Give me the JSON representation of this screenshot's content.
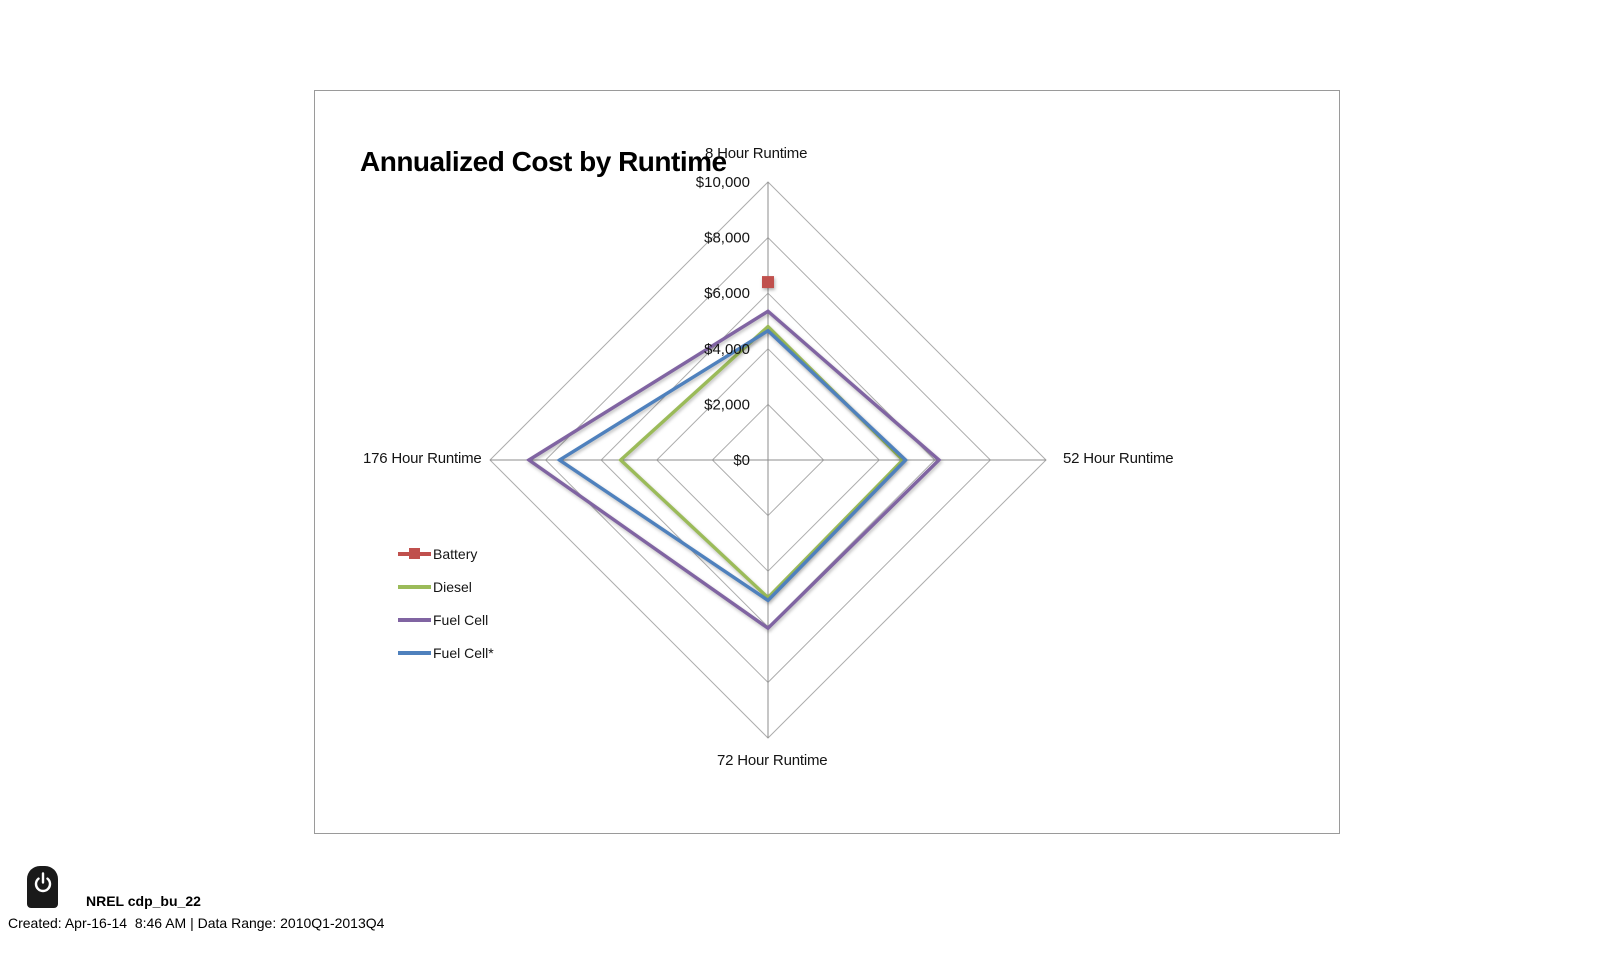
{
  "chart_data": {
    "type": "radar",
    "title": "Annualized Cost by Runtime",
    "axes": [
      "8 Hour Runtime",
      "52 Hour Runtime",
      "72 Hour Runtime",
      "176 Hour Runtime"
    ],
    "r_axis": {
      "min": 0,
      "max": 10000,
      "step": 2000,
      "tick_labels": [
        "$0",
        "$2,000",
        "$4,000",
        "$6,000",
        "$8,000",
        "$10,000"
      ]
    },
    "grid": true,
    "legend_position": "middle-left",
    "series": [
      {
        "name": "Battery",
        "color": "#C0504D",
        "style": "marker-only",
        "marker": "square",
        "values": [
          6400,
          null,
          null,
          null
        ]
      },
      {
        "name": "Diesel",
        "color": "#9BBB59",
        "style": "line",
        "marker": "none",
        "values": [
          4800,
          4850,
          4950,
          5300
        ]
      },
      {
        "name": "Fuel Cell",
        "color": "#8064A2",
        "style": "line",
        "marker": "none",
        "values": [
          5350,
          6150,
          6050,
          8600
        ]
      },
      {
        "name": "Fuel Cell*",
        "color": "#4F81BD",
        "style": "line",
        "marker": "none",
        "values": [
          4650,
          4950,
          5050,
          7500
        ]
      }
    ]
  },
  "footer": {
    "dataset_label": "NREL cdp_bu_22",
    "created_line": "Created: Apr-16-14  8:46 AM | Data Range: 2010Q1-2013Q4",
    "badge_icon": "power-icon"
  }
}
